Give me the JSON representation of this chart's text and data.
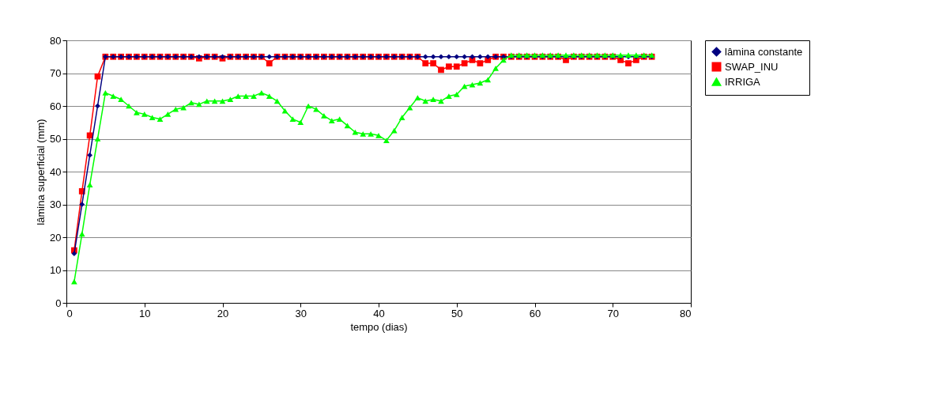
{
  "chart_data": {
    "type": "line",
    "xlabel": "tempo (dias)",
    "ylabel": "lâmina superficial (mm)",
    "x": [
      1,
      2,
      3,
      4,
      5,
      6,
      7,
      8,
      9,
      10,
      11,
      12,
      13,
      14,
      15,
      16,
      17,
      18,
      19,
      20,
      21,
      22,
      23,
      24,
      25,
      26,
      27,
      28,
      29,
      30,
      31,
      32,
      33,
      34,
      35,
      36,
      37,
      38,
      39,
      40,
      41,
      42,
      43,
      44,
      45,
      46,
      47,
      48,
      49,
      50,
      51,
      52,
      53,
      54,
      55,
      56,
      57,
      58,
      59,
      60,
      61,
      62,
      63,
      64,
      65,
      66,
      67,
      68,
      69,
      70,
      71,
      72,
      73,
      74,
      75
    ],
    "series": [
      {
        "name": "lâmina constante",
        "color": "#000080",
        "marker": "diamond",
        "values": [
          15,
          30,
          45,
          60,
          75,
          75,
          75,
          75,
          75,
          75,
          75,
          75,
          75,
          75,
          75,
          75,
          75,
          75,
          75,
          75,
          75,
          75,
          75,
          75,
          75,
          75,
          75,
          75,
          75,
          75,
          75,
          75,
          75,
          75,
          75,
          75,
          75,
          75,
          75,
          75,
          75,
          75,
          75,
          75,
          75,
          75,
          75,
          75,
          75,
          75,
          75,
          75,
          75,
          75,
          75,
          75,
          75,
          75,
          75,
          75,
          75,
          75,
          75,
          75,
          75,
          75,
          75,
          75,
          75,
          75,
          75,
          75,
          75,
          75,
          75
        ]
      },
      {
        "name": "SWAP_INU",
        "color": "#ff0000",
        "marker": "square",
        "values": [
          16,
          34,
          51,
          69,
          75,
          75,
          75,
          75,
          75,
          75,
          75,
          75,
          75,
          75,
          75,
          75,
          74.5,
          75,
          75,
          74.5,
          75,
          75,
          75,
          75,
          75,
          73,
          75,
          75,
          75,
          75,
          75,
          75,
          75,
          75,
          75,
          75,
          75,
          75,
          75,
          75,
          75,
          75,
          75,
          75,
          75,
          73,
          73,
          71,
          72,
          72,
          73,
          74,
          73,
          74,
          75,
          75,
          75,
          75,
          75,
          75,
          75,
          75,
          75,
          74,
          75,
          75,
          75,
          75,
          75,
          75,
          74,
          73,
          74,
          75,
          75
        ]
      },
      {
        "name": "IRRIGA",
        "color": "#00ff00",
        "marker": "triangle",
        "values": [
          6.5,
          21,
          36,
          50,
          64,
          63,
          62,
          60,
          58,
          57.5,
          56.5,
          56,
          57.5,
          59,
          59.5,
          61,
          60.5,
          61.5,
          61.5,
          61.5,
          62,
          63,
          63,
          63,
          64,
          63,
          61.5,
          58.5,
          56,
          55,
          60,
          59,
          57,
          55.5,
          56,
          54,
          52,
          51.5,
          51.5,
          51,
          49.5,
          52.5,
          56.5,
          59.5,
          62.5,
          61.5,
          62,
          61.5,
          63,
          63.5,
          66,
          66.5,
          67,
          68,
          71.5,
          74,
          75.5,
          75.5,
          75.5,
          75.5,
          75.5,
          75.5,
          75.5,
          75.5,
          75.5,
          75.5,
          75.5,
          75.5,
          75.5,
          75.5,
          75.5,
          75.5,
          75.5,
          75.5,
          75.5
        ]
      }
    ],
    "xlim": [
      0,
      80
    ],
    "xticks": [
      0,
      10,
      20,
      30,
      40,
      50,
      60,
      70,
      80
    ],
    "ylim": [
      0,
      80
    ],
    "yticks": [
      0,
      10,
      20,
      30,
      40,
      50,
      60,
      70,
      80
    ],
    "grid": "y",
    "legend": "right"
  }
}
